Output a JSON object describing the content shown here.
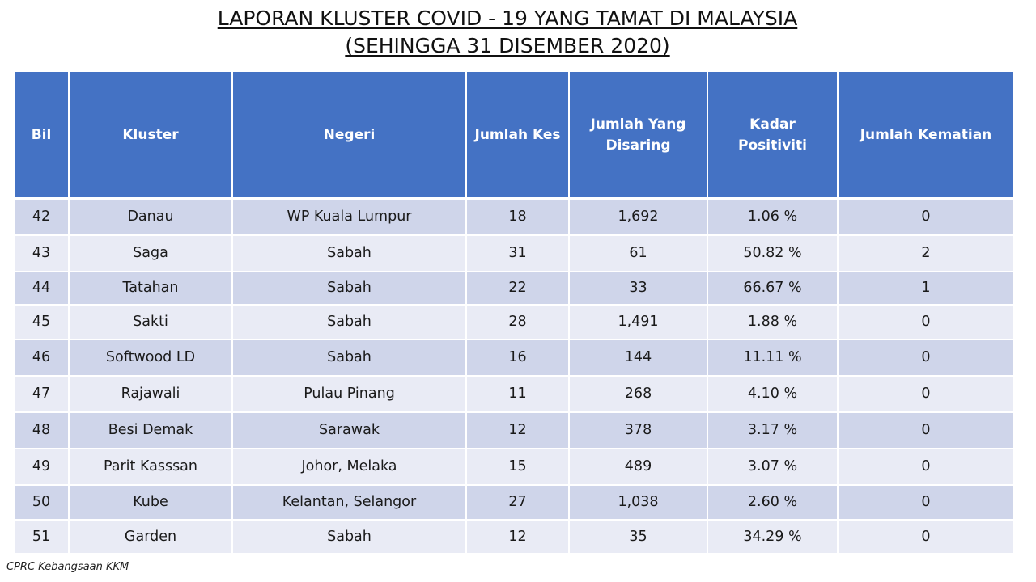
{
  "title": {
    "line1": "LAPORAN KLUSTER COVID - 19 YANG TAMAT DI MALAYSIA",
    "line2": "(SEHINGGA 31 DISEMBER 2020)"
  },
  "table": {
    "headers": {
      "bil": "Bil",
      "kluster": "Kluster",
      "negeri": "Negeri",
      "jumlah_kes": "Jumlah Kes",
      "jumlah_disaring_1": "Jumlah Yang",
      "jumlah_disaring_2": "Disaring",
      "kadar_1": "Kadar",
      "kadar_2": "Positiviti",
      "kematian": "Jumlah Kematian"
    },
    "rows": [
      {
        "bil": "42",
        "kluster": "Danau",
        "negeri": "WP Kuala Lumpur",
        "kes": "18",
        "disaring": "1,692",
        "kadar": "1.06 %",
        "kematian": "0"
      },
      {
        "bil": "43",
        "kluster": "Saga",
        "negeri": "Sabah",
        "kes": "31",
        "disaring": "61",
        "kadar": "50.82 %",
        "kematian": "2"
      },
      {
        "bil": "44",
        "kluster": "Tatahan",
        "negeri": "Sabah",
        "kes": "22",
        "disaring": "33",
        "kadar": "66.67 %",
        "kematian": "1"
      },
      {
        "bil": "45",
        "kluster": "Sakti",
        "negeri": "Sabah",
        "kes": "28",
        "disaring": "1,491",
        "kadar": "1.88 %",
        "kematian": "0"
      },
      {
        "bil": "46",
        "kluster": "Softwood LD",
        "negeri": "Sabah",
        "kes": "16",
        "disaring": "144",
        "kadar": "11.11 %",
        "kematian": "0"
      },
      {
        "bil": "47",
        "kluster": "Rajawali",
        "negeri": "Pulau Pinang",
        "kes": "11",
        "disaring": "268",
        "kadar": "4.10 %",
        "kematian": "0"
      },
      {
        "bil": "48",
        "kluster": "Besi Demak",
        "negeri": "Sarawak",
        "kes": "12",
        "disaring": "378",
        "kadar": "3.17 %",
        "kematian": "0"
      },
      {
        "bil": "49",
        "kluster": "Parit Kasssan",
        "negeri": "Johor, Melaka",
        "kes": "15",
        "disaring": "489",
        "kadar": "3.07 %",
        "kematian": "0"
      },
      {
        "bil": "50",
        "kluster": "Kube",
        "negeri": "Kelantan, Selangor",
        "kes": "27",
        "disaring": "1,038",
        "kadar": "2.60 %",
        "kematian": "0"
      },
      {
        "bil": "51",
        "kluster": "Garden",
        "negeri": "Sabah",
        "kes": "12",
        "disaring": "35",
        "kadar": "34.29 %",
        "kematian": "0"
      }
    ]
  },
  "footer": {
    "source": "CPRC Kebangsaan KKM"
  },
  "colors": {
    "header_bg": "#4472c4",
    "row_dark": "#cfd5ea",
    "row_light": "#e9ebf5"
  }
}
